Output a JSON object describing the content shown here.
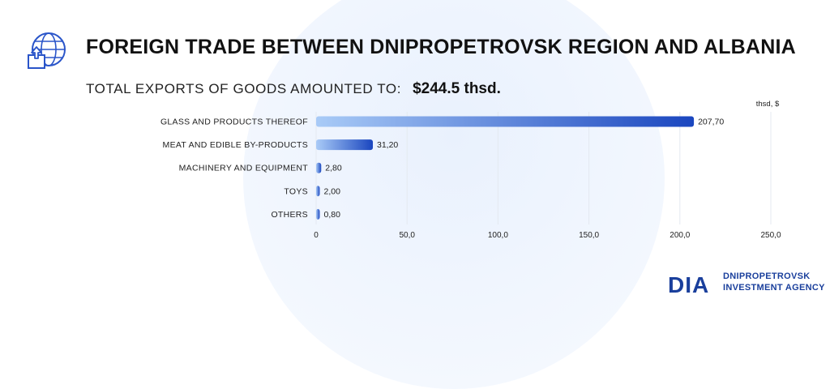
{
  "header": {
    "title": "FOREIGN TRADE BETWEEN DNIPROPETROVSK REGION AND ALBANIA",
    "subtitle_label": "TOTAL EXPORTS OF GOODS AMOUNTED TO:",
    "subtitle_value": "$244.5 thsd.",
    "icon": "globe-export-icon"
  },
  "chart_data": {
    "type": "bar",
    "orientation": "horizontal",
    "unit_label": "thsd, $",
    "categories": [
      "GLASS AND PRODUCTS THEREOF",
      "MEAT AND EDIBLE BY-PRODUCTS",
      "MACHINERY AND EQUIPMENT",
      "TOYS",
      "OTHERS"
    ],
    "values": [
      207.7,
      31.2,
      2.8,
      2.0,
      0.8
    ],
    "value_labels": [
      "207,70",
      "31,20",
      "2,80",
      "2,00",
      "0,80"
    ],
    "xlim": [
      0,
      250
    ],
    "xticks": [
      0,
      50,
      100,
      150,
      200,
      250
    ],
    "xtick_labels": [
      "0",
      "50,0",
      "100,0",
      "150,0",
      "200,0",
      "250,0"
    ],
    "grid": true,
    "colors": {
      "bar_start": "#a9cbf7",
      "bar_end": "#1a46bf",
      "grid": "#e4e9f1"
    }
  },
  "brand": {
    "logo_text": "DIA",
    "line1": "DNIPROPETROVSK",
    "line2": "INVESTMENT AGENCY",
    "color": "#1a3f9c"
  }
}
